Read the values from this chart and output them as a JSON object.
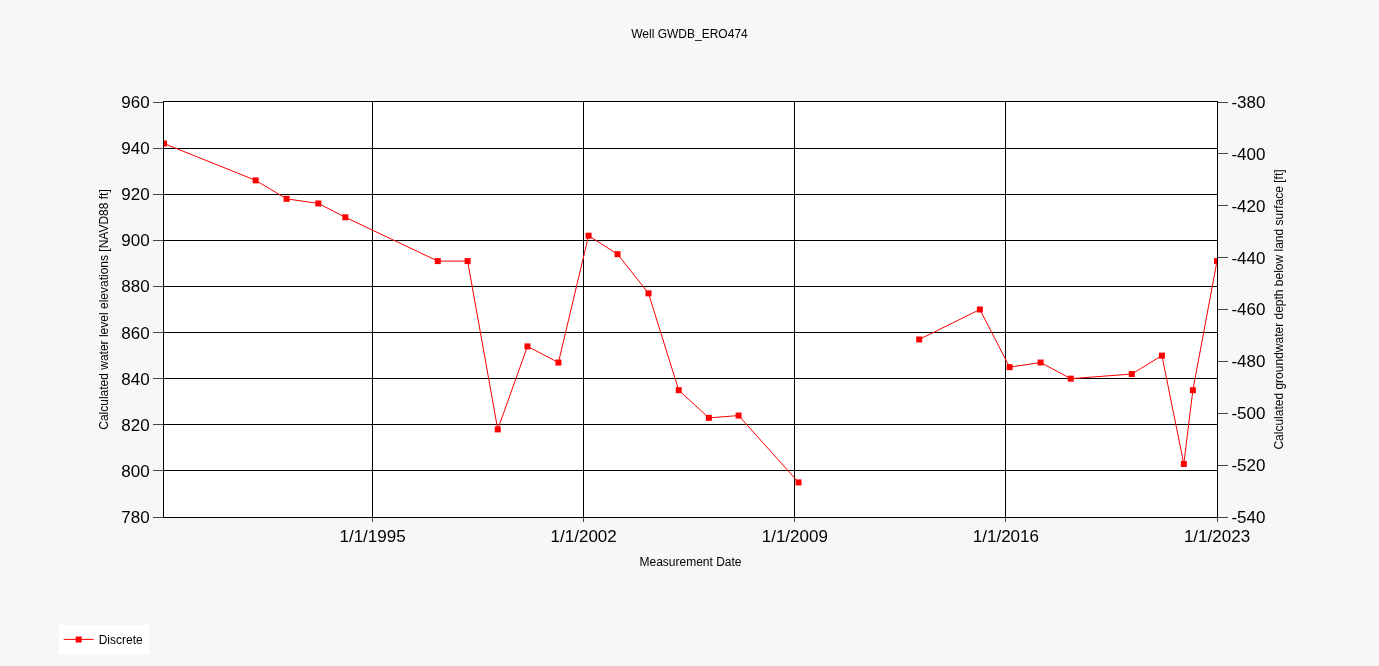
{
  "chart_data": {
    "type": "line",
    "title": "Well GWDB_ERO474",
    "xlabel": "Measurement Date",
    "ylabel": "Calculated water level elevations [NAVD88 ft]",
    "y2label": "Calculated groundwater depth below land surface [ft]",
    "x": [
      "1988-02-01",
      "1991-02-15",
      "1992-02-25",
      "1993-03-15",
      "1994-02-05",
      "1997-03-01",
      "1998-02-25",
      "1999-02-25",
      "2000-02-20",
      "2001-03-01",
      "2002-03-01",
      "2003-02-15",
      "2004-02-25",
      "2005-02-25",
      "2006-02-25",
      "2007-02-20",
      "2009-02-15",
      "2011-01-01",
      "2013-02-15",
      "2015-02-20",
      "2016-02-15",
      "2017-02-25",
      "2018-02-25",
      "2020-03-05",
      "2021-03-05",
      "2021-11-25",
      "2022-03-15",
      "2023-01-01"
    ],
    "series": [
      {
        "name": "Discrete",
        "color": "#ff0000",
        "values": [
          942,
          926,
          918,
          916,
          910,
          891,
          891,
          818,
          854,
          847,
          902,
          894,
          877,
          835,
          823,
          824,
          795,
          null,
          857,
          870,
          845,
          847,
          840,
          842,
          850,
          803,
          835,
          891
        ]
      }
    ],
    "xlim": [
      "1988-02-01",
      "2023-01-01"
    ],
    "xticks": [
      {
        "value": "1995-01-01",
        "label": "1/1/1995"
      },
      {
        "value": "2002-01-01",
        "label": "1/1/2002"
      },
      {
        "value": "2009-01-01",
        "label": "1/1/2009"
      },
      {
        "value": "2016-01-01",
        "label": "1/1/2016"
      },
      {
        "value": "2023-01-01",
        "label": "1/1/2023"
      }
    ],
    "ylim": [
      780,
      960
    ],
    "yticks": [
      780,
      800,
      820,
      840,
      860,
      880,
      900,
      920,
      940,
      960
    ],
    "y2lim": [
      -540,
      -380
    ],
    "y2ticks": [
      -540,
      -520,
      -500,
      -480,
      -460,
      -440,
      -420,
      -400,
      -380
    ],
    "grid": true,
    "legend": "bottom left",
    "marker": "square",
    "line_style": "solid"
  }
}
